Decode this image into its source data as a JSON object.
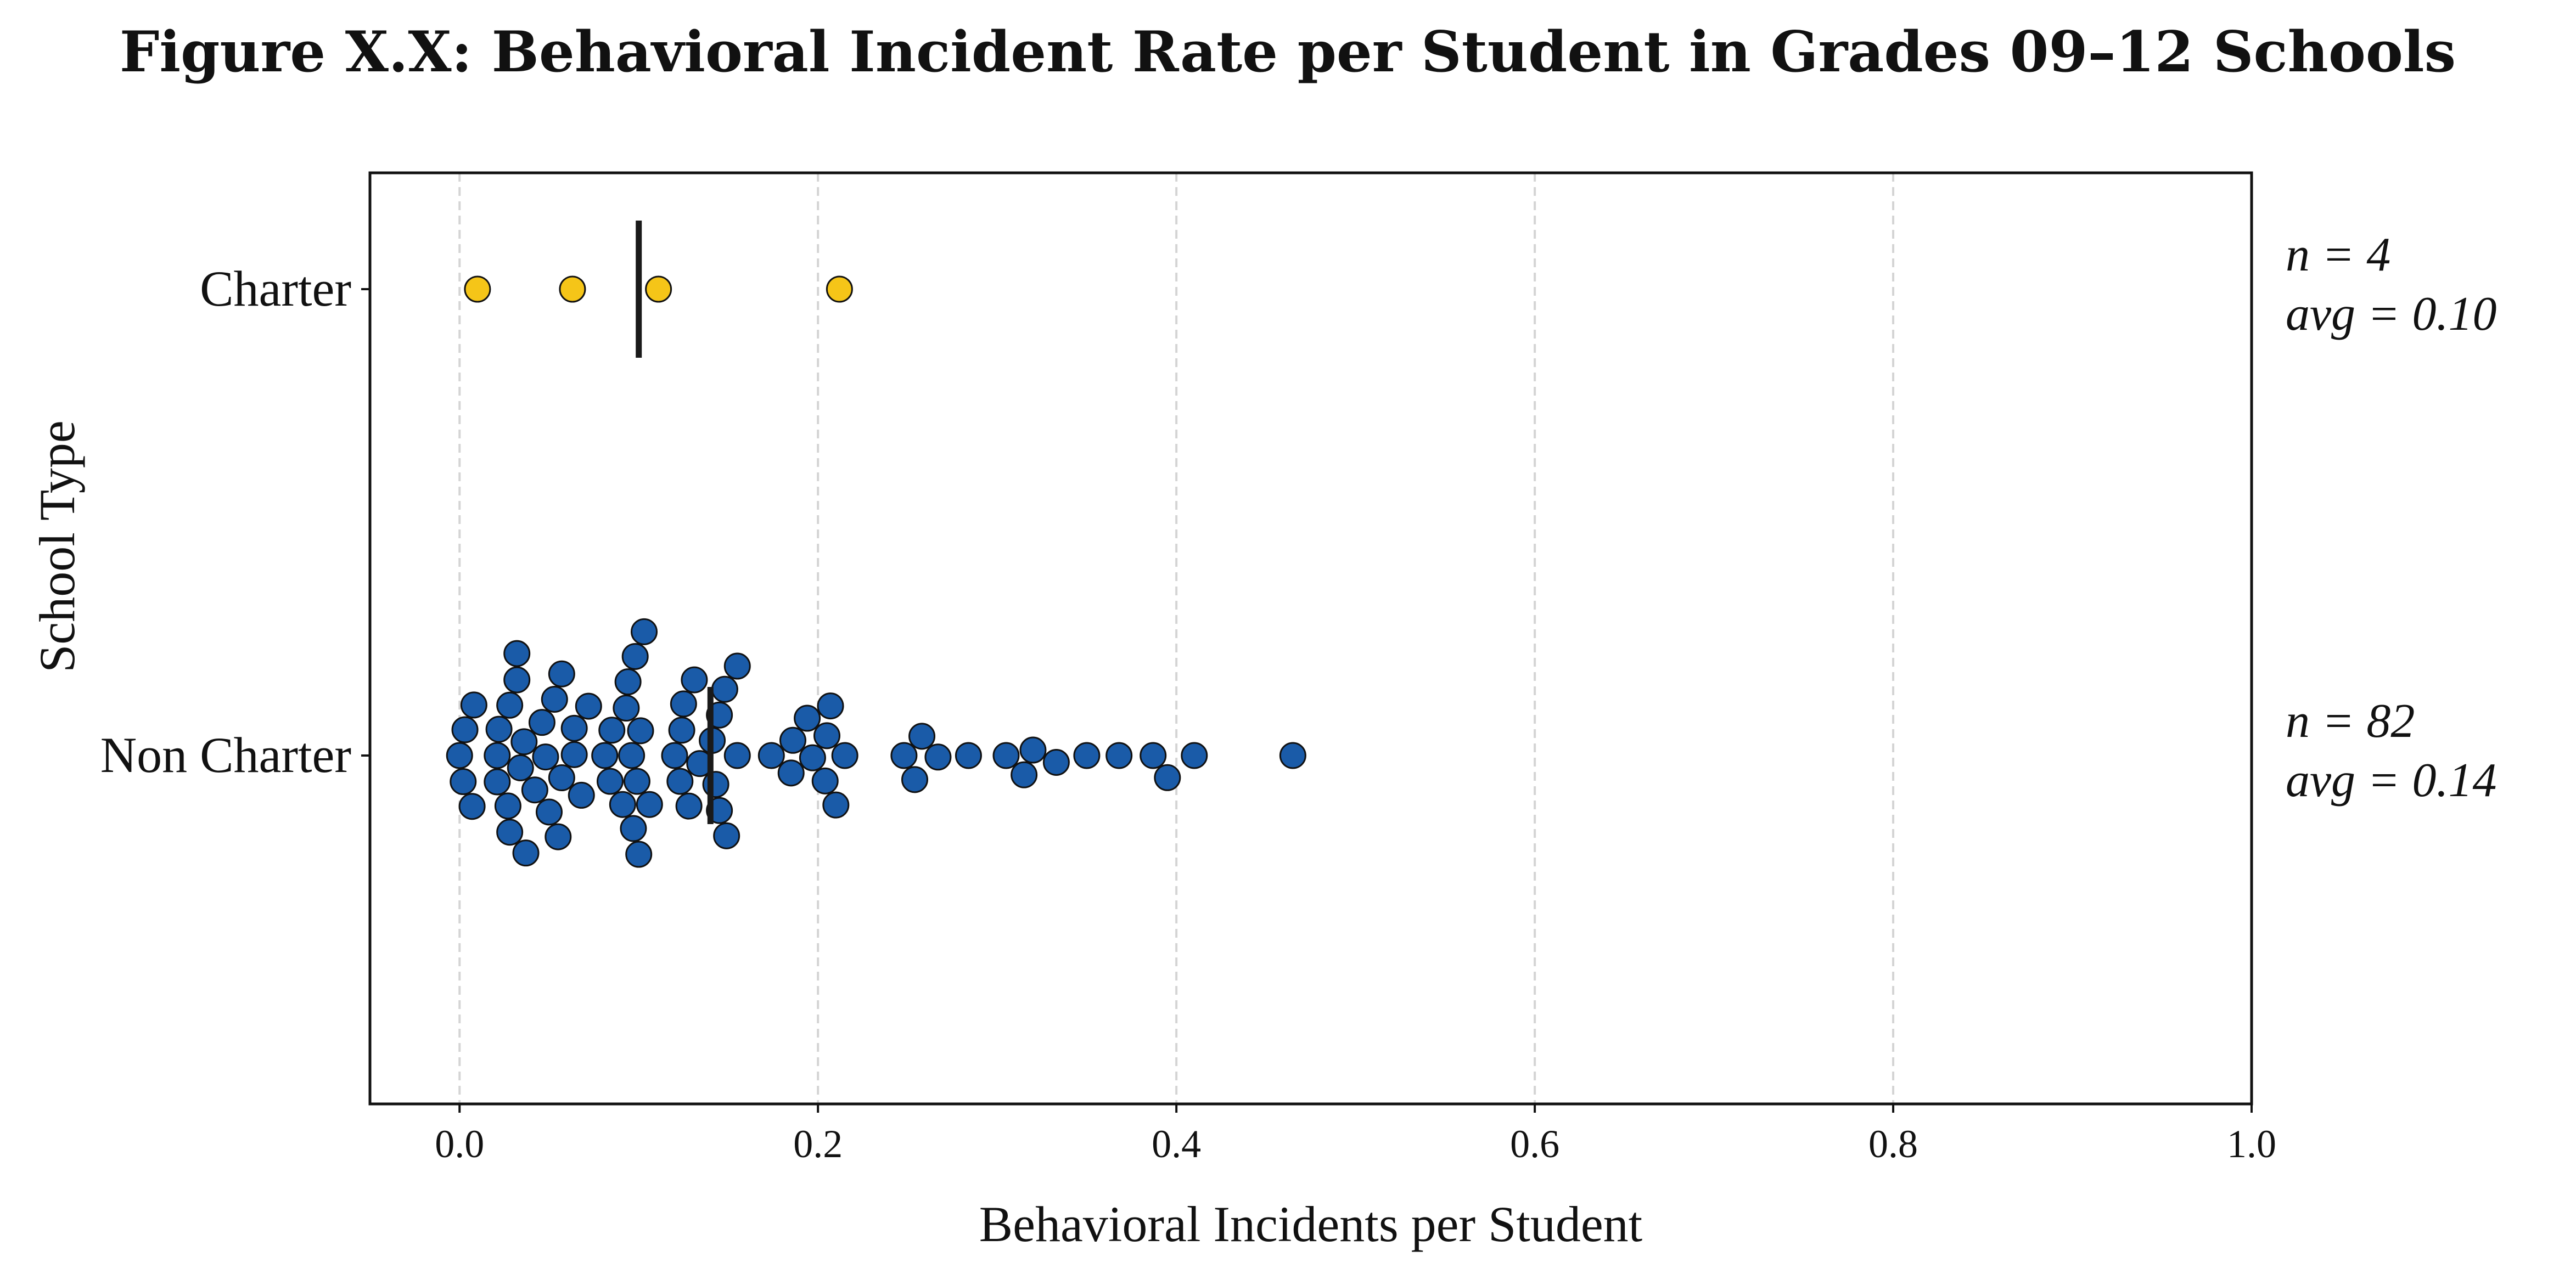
{
  "chart_data": {
    "type": "scatter",
    "subtype": "beeswarm",
    "title": "Figure X.X: Behavioral Incident Rate per Student in Grades 09–12 Schools",
    "xlabel": "Behavioral Incidents per Student",
    "ylabel": "School Type",
    "xlim": [
      -0.05,
      1.0
    ],
    "x_ticks": [
      0.0,
      0.2,
      0.4,
      0.6,
      0.8,
      1.0
    ],
    "x_tick_labels": [
      "0.0",
      "0.2",
      "0.4",
      "0.6",
      "0.8",
      "1.0"
    ],
    "grid": "vertical dashed",
    "categories": [
      "Charter",
      "Non Charter"
    ],
    "series": [
      {
        "name": "Charter",
        "color": "#F5C518",
        "values": [
          0.01,
          0.063,
          0.111,
          0.212
        ],
        "mean": 0.1,
        "annotation_lines": [
          "n = 4",
          "avg = 0.10"
        ]
      },
      {
        "name": "Non Charter",
        "color": "#1A5BA8",
        "values": [
          0.103,
          0.1,
          0.032,
          0.155,
          0.096,
          0.131,
          0.148,
          0.215,
          0.027,
          0.048,
          0.093,
          0.008,
          0.028,
          0.064,
          0.125,
          0.143,
          0.21,
          0.085,
          0.194,
          0.042,
          0.123,
          0.003,
          0.022,
          0.057,
          0.098,
          0.141,
          0.258,
          0.036,
          0.084,
          0.185,
          0.207,
          0.0,
          0.021,
          0.053,
          0.068,
          0.097,
          0.12,
          0.134,
          0.155,
          0.174,
          0.197,
          0.248,
          0.267,
          0.284,
          0.305,
          0.32,
          0.35,
          0.368,
          0.387,
          0.41,
          0.465,
          0.037,
          0.081,
          0.106,
          0.145,
          0.333,
          0.002,
          0.021,
          0.057,
          0.124,
          0.186,
          0.204,
          0.254,
          0.315,
          0.395,
          0.046,
          0.091,
          0.007,
          0.028,
          0.064,
          0.128,
          0.145,
          0.205,
          0.05,
          0.094,
          0.072,
          0.032,
          0.055,
          0.149,
          0.099,
          0.034,
          0.101
        ],
        "mean": 0.14,
        "annotation_lines": [
          "n = 82",
          "avg = 0.14"
        ]
      }
    ]
  }
}
